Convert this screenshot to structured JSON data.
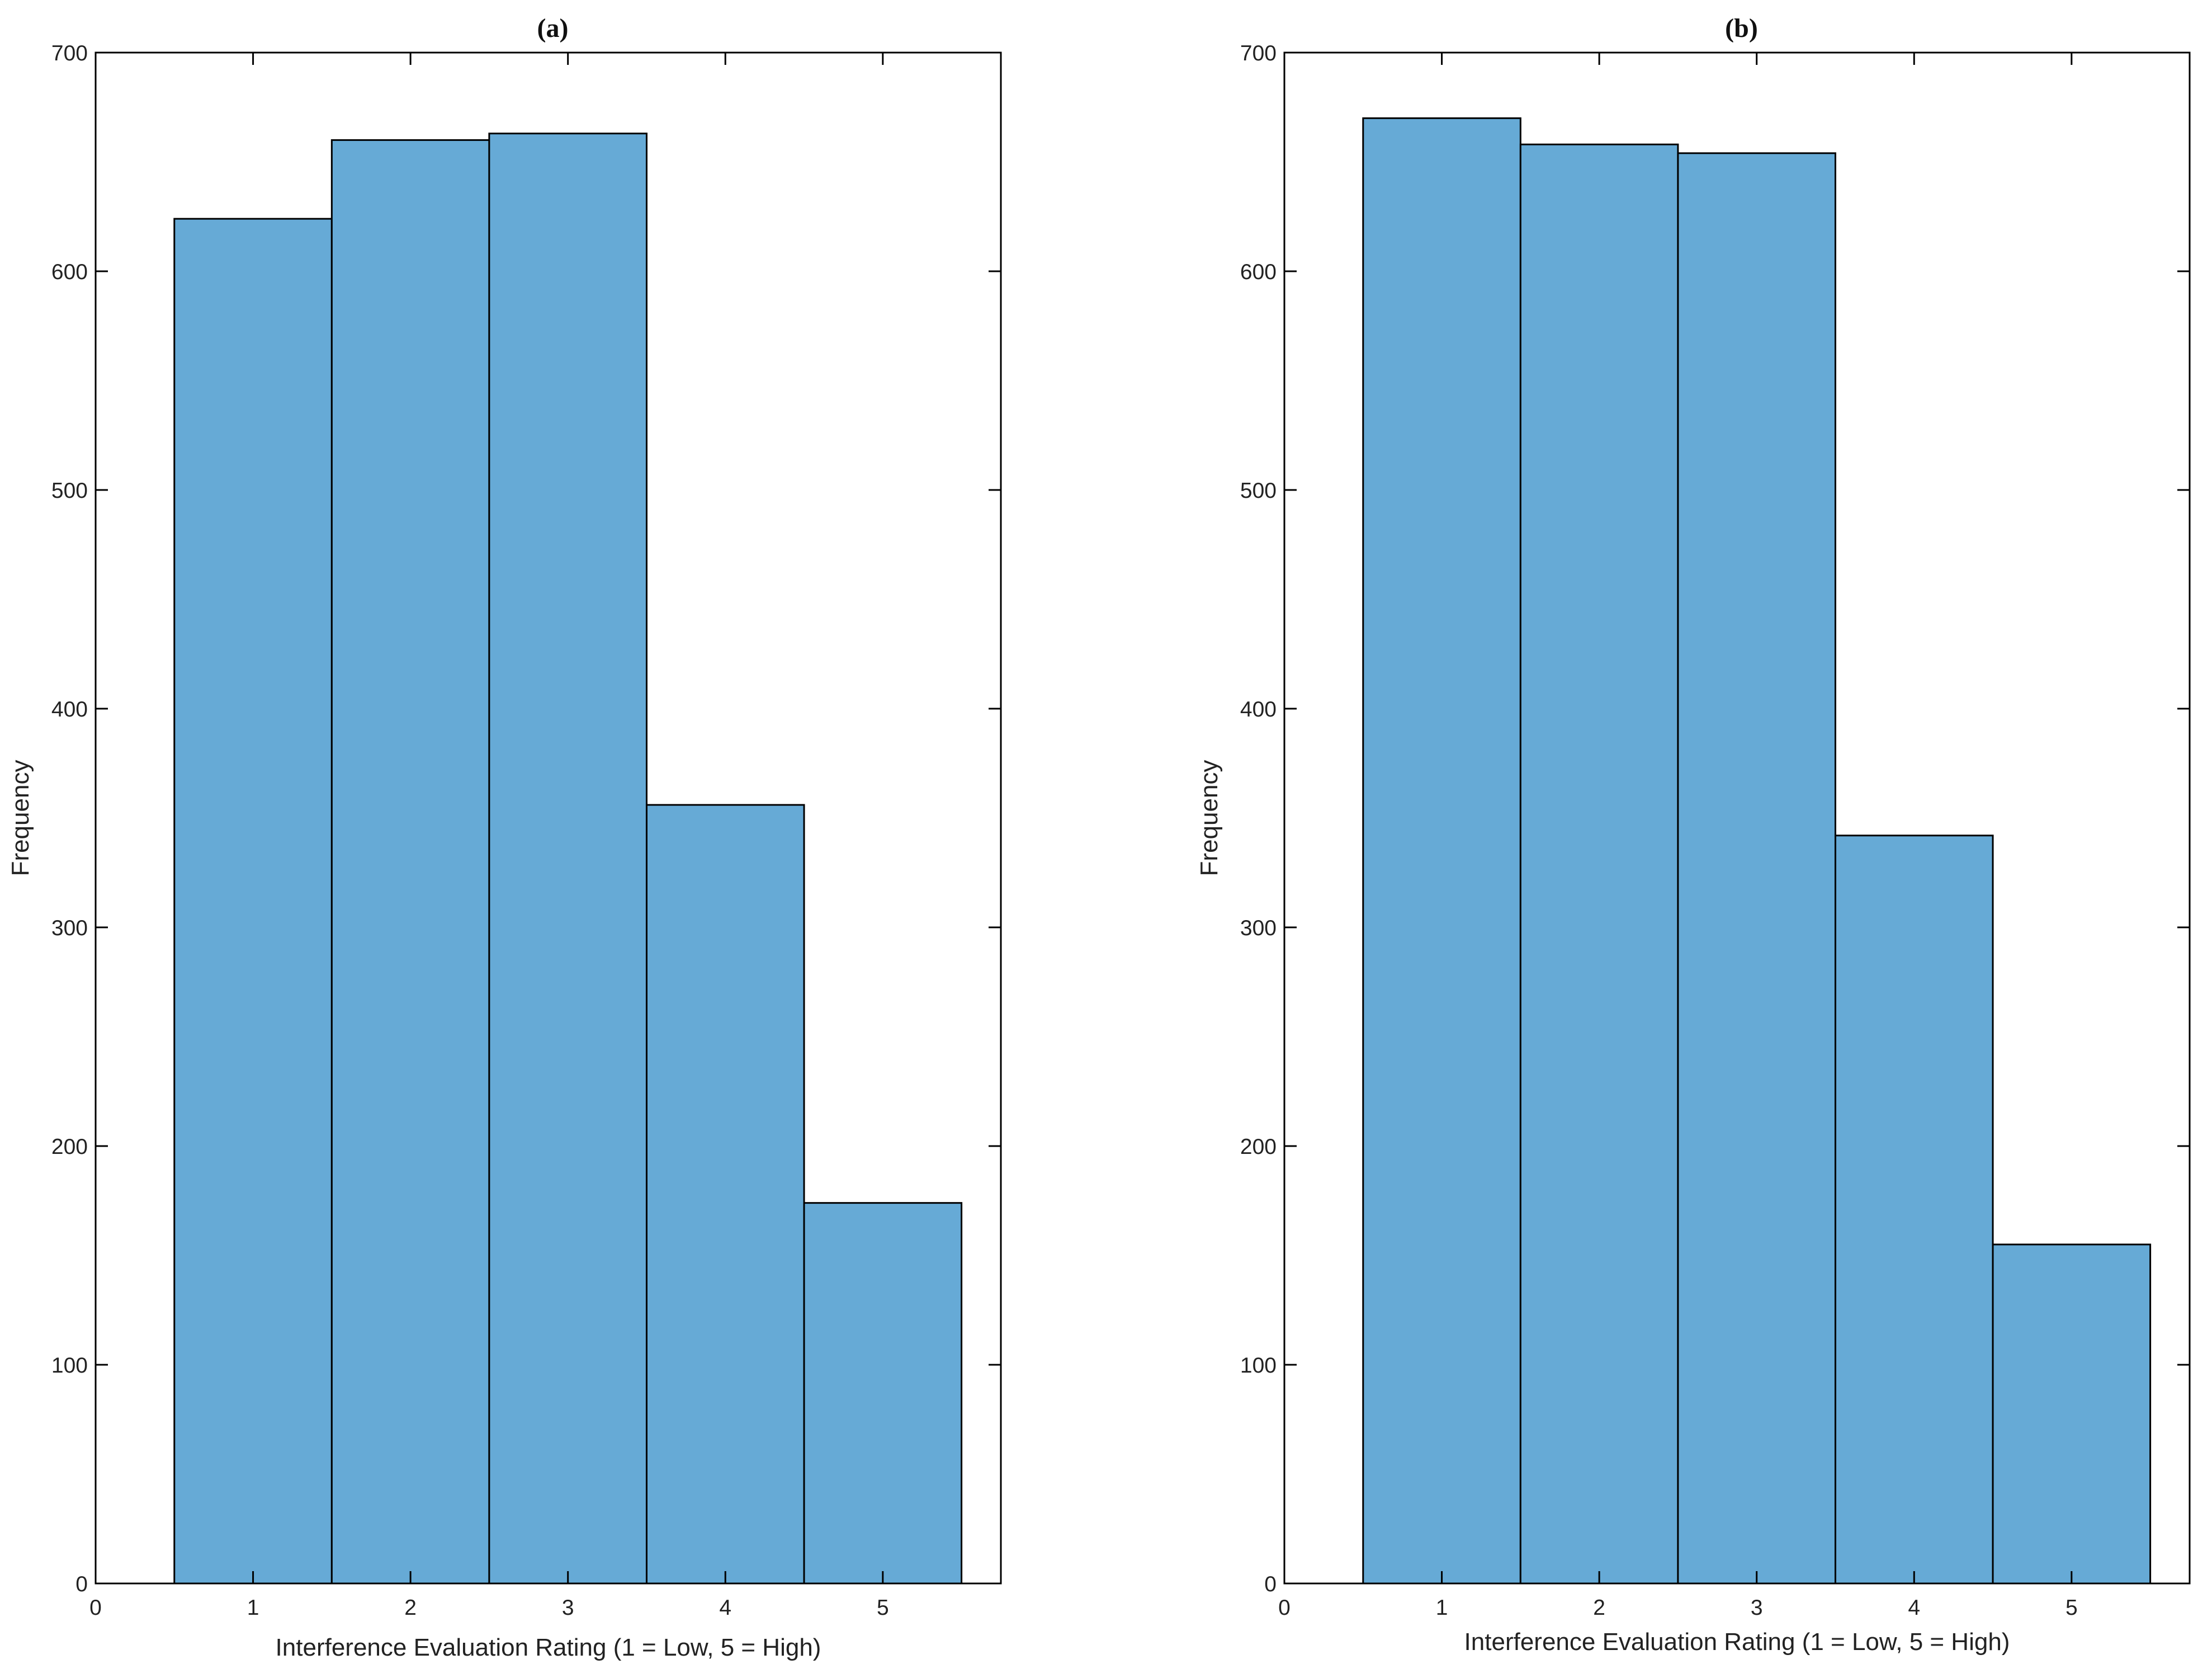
{
  "colors": {
    "bar_fill": "#66aad6",
    "edge": "#000000",
    "background": "#ffffff"
  },
  "chart_data": [
    {
      "type": "bar",
      "title": "(a)",
      "xlabel": "Interference Evaluation Rating (1 = Low, 5 = High)",
      "ylabel": "Frequency",
      "categories": [
        1,
        2,
        3,
        4,
        5
      ],
      "values": [
        624,
        660,
        663,
        356,
        174
      ],
      "xlim": [
        0,
        5.75
      ],
      "ylim": [
        0,
        700
      ],
      "xticks": [
        0,
        1,
        2,
        3,
        4,
        5
      ],
      "yticks": [
        0,
        100,
        200,
        300,
        400,
        500,
        600,
        700
      ],
      "bar_width": 1,
      "grid": false,
      "legend": null
    },
    {
      "type": "bar",
      "title": "(b)",
      "xlabel": "Interference Evaluation Rating (1 = Low, 5 = High)",
      "ylabel": "Frequency",
      "categories": [
        1,
        2,
        3,
        4,
        5
      ],
      "values": [
        670,
        658,
        654,
        342,
        155
      ],
      "xlim": [
        0,
        5.75
      ],
      "ylim": [
        0,
        700
      ],
      "xticks": [
        0,
        1,
        2,
        3,
        4,
        5
      ],
      "yticks": [
        0,
        100,
        200,
        300,
        400,
        500,
        600,
        700
      ],
      "bar_width": 1,
      "grid": false,
      "legend": null
    }
  ]
}
